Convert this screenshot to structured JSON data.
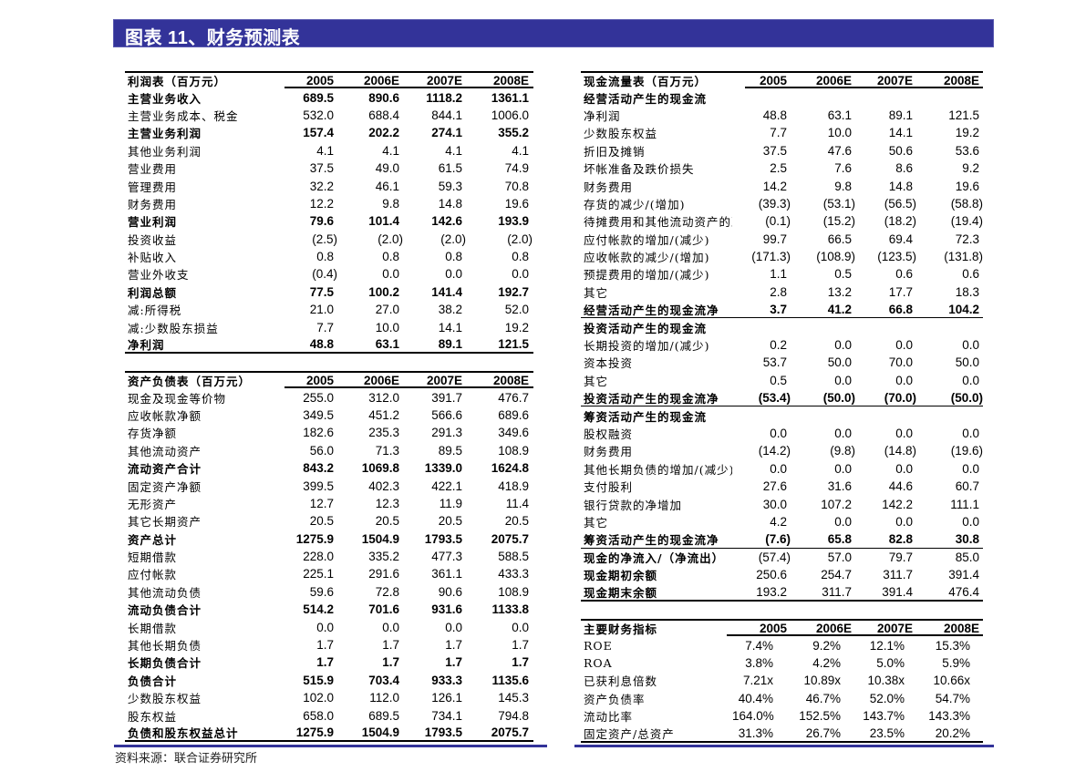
{
  "title": "图表 11、财务预测表",
  "source": "资料来源：联合证券研究所",
  "colors": {
    "title_bar": "#333399",
    "rule": "#000000"
  },
  "income_statement": {
    "header": [
      "利润表（百万元）",
      "2005",
      "2006E",
      "2007E",
      "2008E"
    ],
    "rows": [
      {
        "label": "主营业务收入",
        "values": [
          "689.5",
          "890.6",
          "1118.2",
          "1361.1"
        ],
        "bold": true
      },
      {
        "label": "主营业务成本、税金",
        "values": [
          "532.0",
          "688.4",
          "844.1",
          "1006.0"
        ]
      },
      {
        "label": "主营业务利润",
        "values": [
          "157.4",
          "202.2",
          "274.1",
          "355.2"
        ],
        "bold": true
      },
      {
        "label": "其他业务利润",
        "values": [
          "4.1",
          "4.1",
          "4.1",
          "4.1"
        ]
      },
      {
        "label": "营业费用",
        "values": [
          "37.5",
          "49.0",
          "61.5",
          "74.9"
        ]
      },
      {
        "label": "管理费用",
        "values": [
          "32.2",
          "46.1",
          "59.3",
          "70.8"
        ]
      },
      {
        "label": "财务费用",
        "values": [
          "12.2",
          "9.8",
          "14.8",
          "19.6"
        ]
      },
      {
        "label": "营业利润",
        "values": [
          "79.6",
          "101.4",
          "142.6",
          "193.9"
        ],
        "bold": true
      },
      {
        "label": "投资收益",
        "values": [
          "(2.5)",
          "(2.0)",
          "(2.0)",
          "(2.0)"
        ]
      },
      {
        "label": "补贴收入",
        "values": [
          "0.8",
          "0.8",
          "0.8",
          "0.8"
        ]
      },
      {
        "label": "营业外收支",
        "values": [
          "(0.4)",
          "0.0",
          "0.0",
          "0.0"
        ]
      },
      {
        "label": "利润总额",
        "values": [
          "77.5",
          "100.2",
          "141.4",
          "192.7"
        ],
        "bold": true
      },
      {
        "label": "减:所得税",
        "values": [
          "21.0",
          "27.0",
          "38.2",
          "52.0"
        ]
      },
      {
        "label": "减:少数股东损益",
        "values": [
          "7.7",
          "10.0",
          "14.1",
          "19.2"
        ]
      },
      {
        "label": "净利润",
        "values": [
          "48.8",
          "63.1",
          "89.1",
          "121.5"
        ],
        "bold": true
      }
    ]
  },
  "balance_sheet": {
    "header": [
      "资产负债表（百万元）",
      "2005",
      "2006E",
      "2007E",
      "2008E"
    ],
    "rows": [
      {
        "label": "现金及现金等价物",
        "values": [
          "255.0",
          "312.0",
          "391.7",
          "476.7"
        ]
      },
      {
        "label": "应收帐款净额",
        "values": [
          "349.5",
          "451.2",
          "566.6",
          "689.6"
        ]
      },
      {
        "label": "存货净额",
        "values": [
          "182.6",
          "235.3",
          "291.3",
          "349.6"
        ]
      },
      {
        "label": "其他流动资产",
        "values": [
          "56.0",
          "71.3",
          "89.5",
          "108.9"
        ]
      },
      {
        "label": "流动资产合计",
        "values": [
          "843.2",
          "1069.8",
          "1339.0",
          "1624.8"
        ],
        "bold": true
      },
      {
        "label": "固定资产净额",
        "values": [
          "399.5",
          "402.3",
          "422.1",
          "418.9"
        ]
      },
      {
        "label": "无形资产",
        "values": [
          "12.7",
          "12.3",
          "11.9",
          "11.4"
        ]
      },
      {
        "label": "其它长期资产",
        "values": [
          "20.5",
          "20.5",
          "20.5",
          "20.5"
        ]
      },
      {
        "label": "资产总计",
        "values": [
          "1275.9",
          "1504.9",
          "1793.5",
          "2075.7"
        ],
        "bold": true
      },
      {
        "label": "短期借款",
        "values": [
          "228.0",
          "335.2",
          "477.3",
          "588.5"
        ]
      },
      {
        "label": "应付帐款",
        "values": [
          "225.1",
          "291.6",
          "361.1",
          "433.3"
        ]
      },
      {
        "label": "其他流动负债",
        "values": [
          "59.6",
          "72.8",
          "90.6",
          "108.9"
        ]
      },
      {
        "label": "流动负债合计",
        "values": [
          "514.2",
          "701.6",
          "931.6",
          "1133.8"
        ],
        "bold": true
      },
      {
        "label": "长期借款",
        "values": [
          "0.0",
          "0.0",
          "0.0",
          "0.0"
        ]
      },
      {
        "label": "其他长期负债",
        "values": [
          "1.7",
          "1.7",
          "1.7",
          "1.7"
        ]
      },
      {
        "label": "长期负债合计",
        "values": [
          "1.7",
          "1.7",
          "1.7",
          "1.7"
        ],
        "bold": true
      },
      {
        "label": "负债合计",
        "values": [
          "515.9",
          "703.4",
          "933.3",
          "1135.6"
        ],
        "bold": true
      },
      {
        "label": "少数股东权益",
        "values": [
          "102.0",
          "112.0",
          "126.1",
          "145.3"
        ]
      },
      {
        "label": "股东权益",
        "values": [
          "658.0",
          "689.5",
          "734.1",
          "794.8"
        ]
      },
      {
        "label": "负债和股东权益总计",
        "values": [
          "1275.9",
          "1504.9",
          "1793.5",
          "2075.7"
        ],
        "bold": true
      }
    ]
  },
  "cash_flow": {
    "header": [
      "现金流量表（百万元）",
      "2005",
      "2006E",
      "2007E",
      "2008E"
    ],
    "rows": [
      {
        "label": "经营活动产生的现金流",
        "values": [],
        "section": true
      },
      {
        "label": "净利润",
        "values": [
          "48.8",
          "63.1",
          "89.1",
          "121.5"
        ]
      },
      {
        "label": "少数股东权益",
        "values": [
          "7.7",
          "10.0",
          "14.1",
          "19.2"
        ]
      },
      {
        "label": "折旧及摊销",
        "values": [
          "37.5",
          "47.6",
          "50.6",
          "53.6"
        ]
      },
      {
        "label": "坏帐准备及跌价损失",
        "values": [
          "2.5",
          "7.6",
          "8.6",
          "9.2"
        ]
      },
      {
        "label": "财务费用",
        "values": [
          "14.2",
          "9.8",
          "14.8",
          "19.6"
        ]
      },
      {
        "label": "存货的减少/(增加)",
        "values": [
          "(39.3)",
          "(53.1)",
          "(56.5)",
          "(58.8)"
        ]
      },
      {
        "label": "待摊费用和其他流动资产的减少/(增加)",
        "values": [
          "(0.1)",
          "(15.2)",
          "(18.2)",
          "(19.4)"
        ]
      },
      {
        "label": "应付帐款的增加/(减少)",
        "values": [
          "99.7",
          "66.5",
          "69.4",
          "72.3"
        ]
      },
      {
        "label": "应收帐款的减少/(增加)",
        "values": [
          "(171.3)",
          "(108.9)",
          "(123.5)",
          "(131.8)"
        ]
      },
      {
        "label": "预提费用的增加/(减少)",
        "values": [
          "1.1",
          "0.5",
          "0.6",
          "0.6"
        ]
      },
      {
        "label": "其它",
        "values": [
          "2.8",
          "13.2",
          "17.7",
          "18.3"
        ]
      },
      {
        "label": "经营活动产生的现金流净",
        "values": [
          "3.7",
          "41.2",
          "66.8",
          "104.2"
        ],
        "bold": true
      },
      {
        "label": "投资活动产生的现金流",
        "values": [],
        "section": true
      },
      {
        "label": "长期投资的增加/(减少)",
        "values": [
          "0.2",
          "0.0",
          "0.0",
          "0.0"
        ]
      },
      {
        "label": "资本投资",
        "values": [
          "53.7",
          "50.0",
          "70.0",
          "50.0"
        ]
      },
      {
        "label": "其它",
        "values": [
          "0.5",
          "0.0",
          "0.0",
          "0.0"
        ]
      },
      {
        "label": "投资活动产生的现金流净",
        "values": [
          "(53.4)",
          "(50.0)",
          "(70.0)",
          "(50.0)"
        ],
        "bold": true
      },
      {
        "label": "筹资活动产生的现金流",
        "values": [],
        "section": true
      },
      {
        "label": "股权融资",
        "values": [
          "0.0",
          "0.0",
          "0.0",
          "0.0"
        ]
      },
      {
        "label": "财务费用",
        "values": [
          "(14.2)",
          "(9.8)",
          "(14.8)",
          "(19.6)"
        ]
      },
      {
        "label": "其他长期负债的增加/(减少)",
        "values": [
          "0.0",
          "0.0",
          "0.0",
          "0.0"
        ]
      },
      {
        "label": "支付股利",
        "values": [
          "27.6",
          "31.6",
          "44.6",
          "60.7"
        ]
      },
      {
        "label": "银行贷款的净增加",
        "values": [
          "30.0",
          "107.2",
          "142.2",
          "111.1"
        ]
      },
      {
        "label": "其它",
        "values": [
          "4.2",
          "0.0",
          "0.0",
          "0.0"
        ]
      },
      {
        "label": "筹资活动产生的现金流净",
        "values": [
          "(7.6)",
          "65.8",
          "82.8",
          "30.8"
        ],
        "bold": true
      },
      {
        "label": "现金的净流入/（净流出）",
        "values": [
          "(57.4)",
          "57.0",
          "79.7",
          "85.0"
        ],
        "bold_label": true
      },
      {
        "label": "现金期初余额",
        "values": [
          "250.6",
          "254.7",
          "311.7",
          "391.4"
        ],
        "bold_label": true
      },
      {
        "label": "现金期末余额",
        "values": [
          "193.2",
          "311.7",
          "391.4",
          "476.4"
        ],
        "bold_label": true
      }
    ]
  },
  "key_indicators": {
    "header": [
      "主要财务指标",
      "2005",
      "2006E",
      "2007E",
      "2008E"
    ],
    "rows": [
      {
        "label": "ROE",
        "values": [
          "7.4%",
          "9.2%",
          "12.1%",
          "15.3%"
        ]
      },
      {
        "label": "ROA",
        "values": [
          "3.8%",
          "4.2%",
          "5.0%",
          "5.9%"
        ]
      },
      {
        "label": "已获利息倍数",
        "values": [
          "7.21x",
          "10.89x",
          "10.38x",
          "10.66x"
        ]
      },
      {
        "label": "资产负债率",
        "values": [
          "40.4%",
          "46.7%",
          "52.0%",
          "54.7%"
        ]
      },
      {
        "label": "流动比率",
        "values": [
          "164.0%",
          "152.5%",
          "143.7%",
          "143.3%"
        ]
      },
      {
        "label": "固定资产/总资产",
        "values": [
          "31.3%",
          "26.7%",
          "23.5%",
          "20.2%"
        ]
      }
    ]
  }
}
